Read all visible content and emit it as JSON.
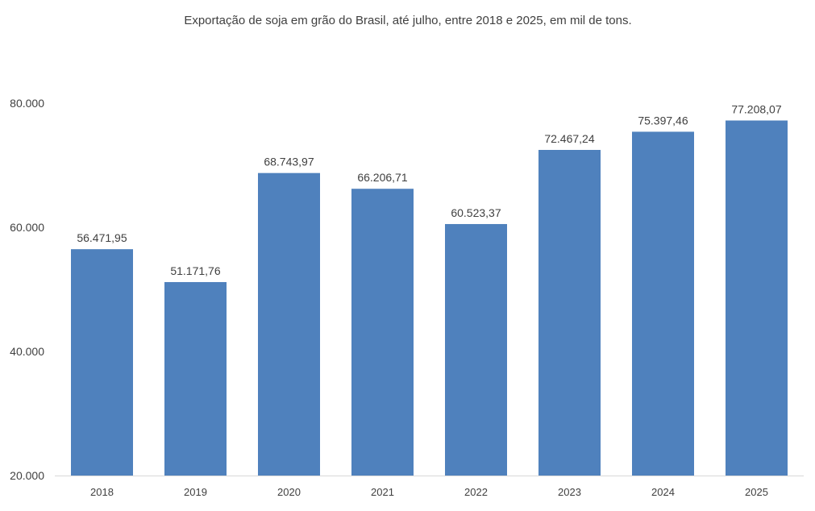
{
  "chart_data": {
    "type": "bar",
    "title": "Exportação de soja em grão do Brasil, até julho, entre 2018 e 2025, em mil de tons.",
    "xlabel": "",
    "ylabel": "",
    "categories": [
      "2018",
      "2019",
      "2020",
      "2021",
      "2022",
      "2023",
      "2024",
      "2025"
    ],
    "values": [
      56471.95,
      51171.76,
      68743.97,
      66206.71,
      60523.37,
      72467.24,
      75397.46,
      77208.07
    ],
    "data_labels": [
      "56.471,95",
      "51.171,76",
      "68.743,97",
      "66.206,71",
      "60.523,37",
      "72.467,24",
      "75.397,46",
      "77.208,07"
    ],
    "ylim": [
      20000,
      80000
    ],
    "yticks": [
      20000,
      40000,
      60000,
      80000
    ],
    "ytick_labels": [
      "20.000",
      "40.000",
      "60.000",
      "80.000"
    ],
    "grid": false,
    "legend": "none",
    "bar_color": "#4f81bd"
  }
}
